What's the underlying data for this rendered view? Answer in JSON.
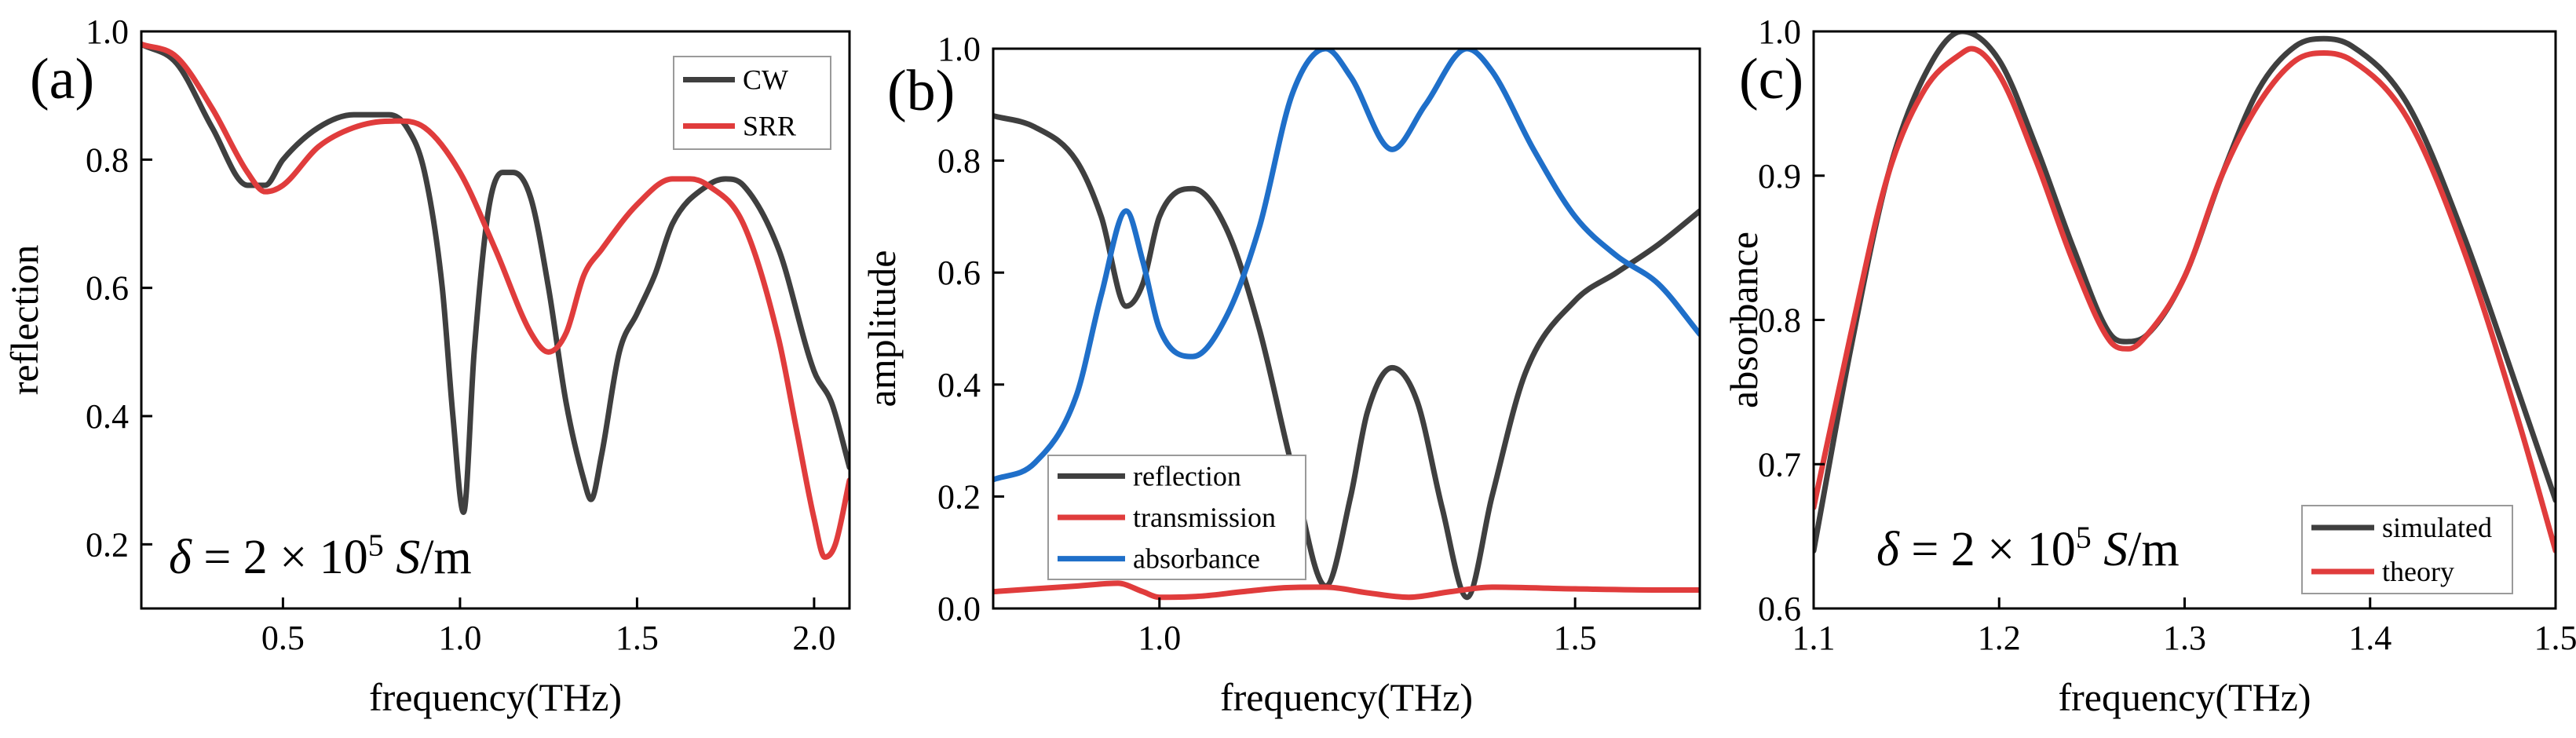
{
  "chart_data": [
    {
      "type": "line",
      "panel_label": "(a)",
      "xlabel": "frequency(THz)",
      "ylabel": "reflection",
      "xlim": [
        0.1,
        2.1
      ],
      "ylim": [
        0.1,
        1.0
      ],
      "xticks": [
        0.5,
        1.0,
        1.5,
        2.0
      ],
      "xtick_labels": [
        "0.5",
        "1.0",
        "1.5",
        "2.0"
      ],
      "yticks": [
        0.2,
        0.4,
        0.6,
        0.8,
        1.0
      ],
      "ytick_labels": [
        "0.2",
        "0.4",
        "0.6",
        "0.8",
        "1.0"
      ],
      "grid": false,
      "legend_position": "top-right",
      "annotation": "δ = 2 × 10⁵ S/m",
      "series": [
        {
          "name": "CW",
          "color": "#3f3f3f",
          "x": [
            0.1,
            0.2,
            0.3,
            0.4,
            0.45,
            0.5,
            0.6,
            0.7,
            0.8,
            0.85,
            0.9,
            0.95,
            0.98,
            1.01,
            1.04,
            1.08,
            1.12,
            1.15,
            1.2,
            1.25,
            1.3,
            1.35,
            1.37,
            1.4,
            1.45,
            1.5,
            1.55,
            1.6,
            1.7,
            1.75,
            1.8,
            1.9,
            2.0,
            2.05,
            2.1
          ],
          "y": [
            0.98,
            0.95,
            0.85,
            0.76,
            0.76,
            0.8,
            0.85,
            0.87,
            0.87,
            0.85,
            0.78,
            0.6,
            0.4,
            0.25,
            0.5,
            0.72,
            0.78,
            0.78,
            0.74,
            0.6,
            0.42,
            0.3,
            0.27,
            0.34,
            0.5,
            0.56,
            0.62,
            0.7,
            0.76,
            0.77,
            0.76,
            0.66,
            0.47,
            0.42,
            0.32
          ]
        },
        {
          "name": "SRR",
          "color": "#e03c3c",
          "x": [
            0.1,
            0.2,
            0.3,
            0.4,
            0.45,
            0.5,
            0.6,
            0.7,
            0.8,
            0.9,
            1.0,
            1.1,
            1.2,
            1.25,
            1.3,
            1.35,
            1.4,
            1.5,
            1.6,
            1.65,
            1.7,
            1.8,
            1.9,
            1.95,
            2.0,
            2.03,
            2.06,
            2.1
          ],
          "y": [
            0.98,
            0.96,
            0.88,
            0.78,
            0.75,
            0.76,
            0.82,
            0.85,
            0.86,
            0.85,
            0.78,
            0.66,
            0.53,
            0.5,
            0.53,
            0.62,
            0.66,
            0.73,
            0.77,
            0.77,
            0.76,
            0.7,
            0.52,
            0.38,
            0.24,
            0.18,
            0.2,
            0.3
          ]
        }
      ]
    },
    {
      "type": "line",
      "panel_label": "(b)",
      "xlabel": "frequency(THz)",
      "ylabel": "amplitude",
      "xlim": [
        0.8,
        1.65
      ],
      "ylim": [
        0.0,
        1.0
      ],
      "xticks": [
        1.0,
        1.5
      ],
      "xtick_labels": [
        "1.0",
        "1.5"
      ],
      "yticks": [
        0.0,
        0.2,
        0.4,
        0.6,
        0.8,
        1.0
      ],
      "ytick_labels": [
        "0.0",
        "0.2",
        "0.4",
        "0.6",
        "0.8",
        "1.0"
      ],
      "grid": false,
      "legend_position": "bottom-center",
      "series": [
        {
          "name": "reflection",
          "color": "#3f3f3f",
          "x": [
            0.8,
            0.85,
            0.9,
            0.93,
            0.96,
            0.98,
            1.0,
            1.04,
            1.08,
            1.12,
            1.16,
            1.2,
            1.23,
            1.25,
            1.28,
            1.31,
            1.34,
            1.37,
            1.4,
            1.44,
            1.5,
            1.55,
            1.6,
            1.65
          ],
          "y": [
            0.88,
            0.86,
            0.8,
            0.7,
            0.54,
            0.58,
            0.7,
            0.75,
            0.68,
            0.5,
            0.25,
            0.04,
            0.2,
            0.35,
            0.43,
            0.37,
            0.18,
            0.02,
            0.2,
            0.42,
            0.55,
            0.6,
            0.65,
            0.71
          ]
        },
        {
          "name": "transmission",
          "color": "#e03c3c",
          "x": [
            0.8,
            0.9,
            0.95,
            0.98,
            1.0,
            1.05,
            1.1,
            1.15,
            1.2,
            1.25,
            1.3,
            1.35,
            1.4,
            1.5,
            1.6,
            1.65
          ],
          "y": [
            0.03,
            0.04,
            0.045,
            0.03,
            0.02,
            0.022,
            0.03,
            0.037,
            0.038,
            0.028,
            0.02,
            0.03,
            0.038,
            0.035,
            0.033,
            0.033
          ]
        },
        {
          "name": "absorbance",
          "color": "#1f6fc9",
          "x": [
            0.8,
            0.85,
            0.9,
            0.93,
            0.96,
            0.98,
            1.0,
            1.04,
            1.08,
            1.12,
            1.16,
            1.2,
            1.23,
            1.28,
            1.32,
            1.37,
            1.4,
            1.45,
            1.5,
            1.55,
            1.6,
            1.65
          ],
          "y": [
            0.23,
            0.26,
            0.38,
            0.56,
            0.71,
            0.62,
            0.5,
            0.45,
            0.52,
            0.68,
            0.92,
            1.0,
            0.95,
            0.82,
            0.9,
            1.0,
            0.96,
            0.82,
            0.7,
            0.63,
            0.58,
            0.49
          ]
        }
      ]
    },
    {
      "type": "line",
      "panel_label": "(c)",
      "xlabel": "frequency(THz)",
      "ylabel": "absorbance",
      "xlim": [
        1.1,
        1.5
      ],
      "ylim": [
        0.6,
        1.0
      ],
      "xticks": [
        1.1,
        1.2,
        1.3,
        1.4,
        1.5
      ],
      "xtick_labels": [
        "1.1",
        "1.2",
        "1.3",
        "1.4",
        "1.5"
      ],
      "yticks": [
        0.6,
        0.7,
        0.8,
        0.9,
        1.0
      ],
      "ytick_labels": [
        "0.6",
        "0.7",
        "0.8",
        "0.9",
        "1.0"
      ],
      "grid": false,
      "legend_position": "bottom-right",
      "annotation": "δ = 2 × 10⁵ S/m",
      "series": [
        {
          "name": "simulated",
          "color": "#3f3f3f",
          "x": [
            1.1,
            1.12,
            1.14,
            1.16,
            1.18,
            1.2,
            1.22,
            1.24,
            1.26,
            1.27,
            1.28,
            1.3,
            1.32,
            1.34,
            1.36,
            1.375,
            1.39,
            1.42,
            1.45,
            1.48,
            1.5
          ],
          "y": [
            0.64,
            0.78,
            0.9,
            0.97,
            1.0,
            0.98,
            0.92,
            0.85,
            0.79,
            0.785,
            0.79,
            0.83,
            0.9,
            0.96,
            0.99,
            0.995,
            0.99,
            0.95,
            0.86,
            0.75,
            0.675
          ]
        },
        {
          "name": "theory",
          "color": "#e03c3c",
          "x": [
            1.1,
            1.12,
            1.14,
            1.16,
            1.18,
            1.185,
            1.2,
            1.22,
            1.24,
            1.26,
            1.27,
            1.28,
            1.3,
            1.32,
            1.34,
            1.36,
            1.375,
            1.39,
            1.42,
            1.45,
            1.48,
            1.5
          ],
          "y": [
            0.67,
            0.79,
            0.9,
            0.96,
            0.985,
            0.988,
            0.97,
            0.91,
            0.84,
            0.785,
            0.78,
            0.79,
            0.83,
            0.9,
            0.95,
            0.98,
            0.985,
            0.98,
            0.94,
            0.85,
            0.73,
            0.64
          ]
        }
      ]
    }
  ]
}
